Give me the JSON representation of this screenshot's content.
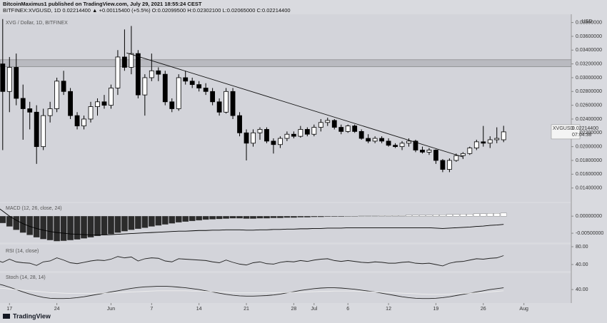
{
  "header": {
    "line1": "BitcoinMaximus1 published on TradingView.com, July 29, 2021 18:55:24 CEST",
    "line2": "BITFINEX:XVGUSD, 1D  0.02214400  ▲ +0.00115400 (+5.5%)  O:0.02099500  H:0.02302100  L:0.02065000  C:0.02214400"
  },
  "footer": {
    "brand": "TradingView"
  },
  "chart_data": [
    {
      "type": "candlestick",
      "title": "XVG / Dollar, 1D, BITFINEX",
      "y_unit": "USD",
      "open": [
        0.029,
        0.032,
        0.028,
        0.0315,
        0.027,
        0.0255,
        0.025,
        0.02,
        0.0245,
        0.0255,
        0.0295,
        0.028,
        0.0245,
        0.023,
        0.024,
        0.0258,
        0.0265,
        0.026,
        0.0285,
        0.033,
        0.0315,
        0.0335,
        0.0275,
        0.03,
        0.031,
        0.0305,
        0.0265,
        0.0255,
        0.03,
        0.0295,
        0.029,
        0.0285,
        0.028,
        0.0265,
        0.025,
        0.028,
        0.0245,
        0.022,
        0.0205,
        0.022,
        0.0225,
        0.0208,
        0.0203,
        0.0212,
        0.0218,
        0.0215,
        0.0225,
        0.0218,
        0.0228,
        0.0235,
        0.0238,
        0.0228,
        0.0222,
        0.023,
        0.0222,
        0.0212,
        0.0208,
        0.0212,
        0.0208,
        0.0202,
        0.02,
        0.0205,
        0.0208,
        0.0195,
        0.0192,
        0.0195,
        0.018,
        0.0167,
        0.018,
        0.0187,
        0.019,
        0.0198,
        0.0207,
        0.0205,
        0.021,
        0.020995
      ],
      "high": [
        0.033,
        0.0385,
        0.033,
        0.0335,
        0.029,
        0.0265,
        0.026,
        0.0255,
        0.0265,
        0.03,
        0.031,
        0.0285,
        0.025,
        0.0245,
        0.0265,
        0.027,
        0.0275,
        0.029,
        0.034,
        0.037,
        0.0375,
        0.034,
        0.0305,
        0.0335,
        0.0315,
        0.031,
        0.027,
        0.0305,
        0.031,
        0.03,
        0.0295,
        0.0292,
        0.0285,
        0.027,
        0.0285,
        0.0285,
        0.025,
        0.0225,
        0.0225,
        0.0228,
        0.0228,
        0.0212,
        0.0215,
        0.0222,
        0.0222,
        0.023,
        0.0228,
        0.0232,
        0.024,
        0.0242,
        0.024,
        0.0232,
        0.0232,
        0.0232,
        0.0225,
        0.0218,
        0.0215,
        0.0215,
        0.0212,
        0.0205,
        0.0208,
        0.0212,
        0.021,
        0.02,
        0.0198,
        0.0196,
        0.0182,
        0.0183,
        0.019,
        0.0192,
        0.02,
        0.021,
        0.023,
        0.0215,
        0.0228,
        0.023021
      ],
      "low": [
        0.027,
        0.0195,
        0.025,
        0.026,
        0.021,
        0.0225,
        0.0175,
        0.0195,
        0.0235,
        0.025,
        0.0275,
        0.024,
        0.0225,
        0.0225,
        0.0235,
        0.0245,
        0.0255,
        0.0255,
        0.0275,
        0.031,
        0.0305,
        0.027,
        0.0245,
        0.0295,
        0.0295,
        0.026,
        0.025,
        0.0252,
        0.029,
        0.0285,
        0.028,
        0.0275,
        0.026,
        0.0245,
        0.0248,
        0.024,
        0.0215,
        0.018,
        0.02,
        0.021,
        0.0205,
        0.019,
        0.0198,
        0.0208,
        0.0212,
        0.0213,
        0.0215,
        0.0215,
        0.0222,
        0.023,
        0.0225,
        0.0218,
        0.022,
        0.022,
        0.021,
        0.0205,
        0.0205,
        0.0205,
        0.02,
        0.0198,
        0.0195,
        0.02,
        0.0192,
        0.019,
        0.0188,
        0.0175,
        0.0163,
        0.0163,
        0.0178,
        0.0182,
        0.0188,
        0.0195,
        0.02,
        0.0198,
        0.0205,
        0.02065
      ],
      "close": [
        0.032,
        0.028,
        0.0315,
        0.027,
        0.0255,
        0.025,
        0.02,
        0.0245,
        0.0255,
        0.0295,
        0.028,
        0.0245,
        0.023,
        0.024,
        0.0258,
        0.0265,
        0.026,
        0.0285,
        0.033,
        0.0315,
        0.0335,
        0.0275,
        0.03,
        0.031,
        0.0305,
        0.0265,
        0.0255,
        0.03,
        0.0295,
        0.029,
        0.0285,
        0.028,
        0.0265,
        0.025,
        0.028,
        0.0245,
        0.022,
        0.0205,
        0.022,
        0.0225,
        0.0208,
        0.0203,
        0.0212,
        0.0218,
        0.0215,
        0.0225,
        0.0218,
        0.0228,
        0.0235,
        0.0238,
        0.0228,
        0.0222,
        0.023,
        0.0222,
        0.0212,
        0.0208,
        0.0212,
        0.0208,
        0.0202,
        0.02,
        0.0205,
        0.0208,
        0.0195,
        0.0192,
        0.0195,
        0.018,
        0.0167,
        0.018,
        0.0187,
        0.019,
        0.0198,
        0.0207,
        0.0205,
        0.021,
        0.0212,
        0.022144
      ],
      "up_color": "#ffffff",
      "down_color": "#000000",
      "xlim": [
        0.6,
        85
      ],
      "xticks": [
        {
          "value": 2,
          "label": "17"
        },
        {
          "value": 9,
          "label": "24"
        },
        {
          "value": 17,
          "label": "Jun"
        },
        {
          "value": 23,
          "label": "7"
        },
        {
          "value": 30,
          "label": "14"
        },
        {
          "value": 37,
          "label": "21"
        },
        {
          "value": 44,
          "label": "28"
        },
        {
          "value": 47,
          "label": "Jul"
        },
        {
          "value": 52,
          "label": "6"
        },
        {
          "value": 58,
          "label": "12"
        },
        {
          "value": 65,
          "label": "19"
        },
        {
          "value": 72,
          "label": "26"
        },
        {
          "value": 78,
          "label": "Aug"
        }
      ],
      "ylim": [
        0.012,
        0.0392
      ],
      "yticks": [
        {
          "value": 0.014,
          "label": "0.01400000"
        },
        {
          "value": 0.016,
          "label": "0.01600000"
        },
        {
          "value": 0.018,
          "label": "0.01800000"
        },
        {
          "value": 0.02,
          "label": "0.02000000"
        },
        {
          "value": 0.022,
          "label": "0.02200000"
        },
        {
          "value": 0.024,
          "label": "0.02400000"
        },
        {
          "value": 0.026,
          "label": "0.02600000"
        },
        {
          "value": 0.028,
          "label": "0.02800000"
        },
        {
          "value": 0.03,
          "label": "0.03000000"
        },
        {
          "value": 0.032,
          "label": "0.03200000"
        },
        {
          "value": 0.034,
          "label": "0.03400000"
        },
        {
          "value": 0.036,
          "label": "0.03600000"
        },
        {
          "value": 0.038,
          "label": "0.03800000"
        }
      ],
      "last_symbol": "XVGUSD",
      "last_price": {
        "value": 0.022144,
        "label": "0.02214400"
      },
      "countdown": "07:04:38",
      "resistance_zone": [
        0.0316,
        0.0326
      ],
      "trendline": {
        "x": [
          19.3,
          69
        ],
        "y": [
          0.0336,
          0.0185
        ]
      }
    },
    {
      "type": "macd",
      "title": "MACD (12, 26, close, 24)",
      "histogram": [
        -0.001,
        -0.002,
        -0.003,
        -0.004,
        -0.0048,
        -0.0055,
        -0.0062,
        -0.0067,
        -0.007,
        -0.0073,
        -0.0072,
        -0.007,
        -0.0068,
        -0.0065,
        -0.0062,
        -0.0058,
        -0.0055,
        -0.0052,
        -0.0048,
        -0.0044,
        -0.004,
        -0.0037,
        -0.0034,
        -0.003,
        -0.0027,
        -0.0024,
        -0.0021,
        -0.0018,
        -0.0016,
        -0.0014,
        -0.0012,
        -0.001,
        -0.0009,
        -0.0008,
        -0.0007,
        -0.0006,
        -0.0006,
        -0.0007,
        -0.0007,
        -0.0006,
        -0.0006,
        -0.0005,
        -0.0005,
        -0.0004,
        -0.0004,
        -0.0003,
        -0.0003,
        -0.0002,
        -0.0002,
        -0.0001,
        -0.0001,
        -0.0001,
        0.0,
        0.0,
        0.0001,
        0.0001,
        0.0001,
        0.0002,
        0.0002,
        0.0002,
        0.0002,
        0.0003,
        0.0003,
        0.0003,
        0.0003,
        0.0004,
        0.0004,
        0.0005,
        0.0005,
        0.0006,
        0.0006,
        0.0007,
        0.0007,
        0.0008,
        0.0008,
        0.0009
      ],
      "macd": [
        0.003,
        0.0015,
        0.0,
        -0.0012,
        -0.0022,
        -0.003,
        -0.0036,
        -0.0041,
        -0.0045,
        -0.0048,
        -0.005,
        -0.0052,
        -0.0053,
        -0.0054,
        -0.0055,
        -0.0055,
        -0.0055,
        -0.0054,
        -0.0053,
        -0.0052,
        -0.0051,
        -0.005,
        -0.0049,
        -0.0048,
        -0.0047,
        -0.0046,
        -0.0045,
        -0.0044,
        -0.0044,
        -0.0043,
        -0.0042,
        -0.0042,
        -0.0041,
        -0.0041,
        -0.004,
        -0.004,
        -0.004,
        -0.0041,
        -0.0041,
        -0.004,
        -0.004,
        -0.0039,
        -0.0039,
        -0.0038,
        -0.0038,
        -0.0037,
        -0.0037,
        -0.0036,
        -0.0036,
        -0.0035,
        -0.0035,
        -0.0035,
        -0.0034,
        -0.0034,
        -0.0034,
        -0.0034,
        -0.0034,
        -0.0034,
        -0.0034,
        -0.0034,
        -0.0034,
        -0.0034,
        -0.0034,
        -0.0034,
        -0.0034,
        -0.0035,
        -0.0036,
        -0.0035,
        -0.0034,
        -0.0033,
        -0.0032,
        -0.003,
        -0.0029,
        -0.0027,
        -0.0026,
        -0.0024
      ],
      "negative_color": "#2b2b2b",
      "positive_color": "#ffffff",
      "line_color": "#000000",
      "ylim": [
        -0.0077,
        0.0038
      ],
      "yticks": [
        {
          "value": 0,
          "label": "0.00000000"
        },
        {
          "value": -0.005,
          "label": "-0.00500000"
        }
      ]
    },
    {
      "type": "line",
      "title": "RSI (14, close)",
      "color": "#222222",
      "values": [
        50,
        45,
        52,
        46,
        44,
        43,
        38,
        46,
        48,
        55,
        50,
        44,
        42,
        45,
        48,
        50,
        49,
        52,
        58,
        55,
        57,
        48,
        53,
        55,
        54,
        48,
        46,
        53,
        52,
        51,
        50,
        49,
        46,
        44,
        50,
        45,
        41,
        39,
        44,
        46,
        42,
        41,
        45,
        47,
        46,
        49,
        47,
        50,
        52,
        53,
        49,
        47,
        49,
        47,
        45,
        44,
        46,
        45,
        43,
        43,
        45,
        46,
        43,
        42,
        43,
        40,
        37,
        43,
        46,
        47,
        50,
        53,
        52,
        54,
        55,
        60
      ],
      "ylim": [
        25.6,
        84.8
      ],
      "yticks": [
        {
          "value": 80,
          "label": "80.00"
        },
        {
          "value": 40,
          "label": "40.00"
        }
      ]
    },
    {
      "type": "line",
      "title": "Stoch (14, 28, 14)",
      "series": [
        {
          "color": "#222222",
          "values": [
            60,
            55,
            48,
            40,
            32,
            25,
            19,
            14,
            11,
            10,
            10,
            11,
            13,
            16,
            20,
            24,
            28,
            32,
            36,
            40,
            44,
            47,
            49,
            50,
            51,
            51,
            50,
            48,
            46,
            43,
            40,
            36,
            32,
            28,
            24,
            21,
            19,
            18,
            18,
            19,
            20,
            22,
            25,
            29,
            33,
            37,
            40,
            43,
            45,
            46,
            46,
            45,
            43,
            41,
            38,
            35,
            32,
            28,
            24,
            20,
            16,
            13,
            11,
            10,
            10,
            11,
            13,
            16,
            20,
            24,
            28,
            32,
            36,
            40,
            43,
            46
          ]
        },
        {
          "color": "#eeeeee",
          "values": [
            45,
            44,
            42,
            40,
            38,
            36,
            34,
            32,
            30,
            29,
            28,
            27,
            27,
            27,
            27,
            28,
            28,
            29,
            30,
            31,
            32,
            33,
            34,
            35,
            36,
            36,
            36,
            36,
            36,
            35,
            35,
            34,
            33,
            32,
            31,
            30,
            29,
            29,
            29,
            29,
            29,
            29,
            30,
            30,
            31,
            31,
            32,
            33,
            34,
            34,
            35,
            35,
            35,
            35,
            34,
            33,
            32,
            31,
            30,
            29,
            28,
            27,
            26,
            25,
            24,
            24,
            24,
            25,
            26,
            27,
            28,
            29,
            30,
            32,
            34,
            36
          ]
        }
      ],
      "ylim": [
        -5,
        95
      ],
      "yticks": [
        {
          "value": 40,
          "label": "40.00"
        }
      ]
    }
  ]
}
